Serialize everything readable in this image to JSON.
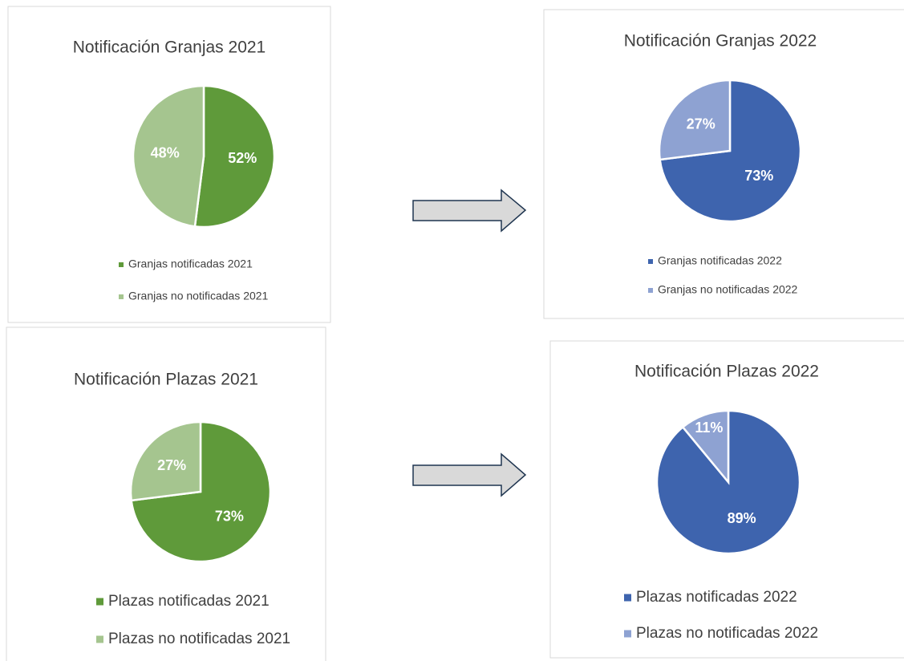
{
  "chart_data": [
    {
      "type": "pie",
      "title": "Notificación Granjas 2021",
      "categories": [
        "Granjas notificadas 2021",
        "Granjas no notificadas 2021"
      ],
      "values": [
        52,
        48
      ],
      "value_labels": [
        "52%",
        "48%"
      ],
      "colors": [
        "#5f9a3a",
        "#a5c58f"
      ]
    },
    {
      "type": "pie",
      "title": "Notificación Granjas 2022",
      "categories": [
        "Granjas notificadas 2022",
        "Granjas no notificadas 2022"
      ],
      "values": [
        73,
        27
      ],
      "value_labels": [
        "73%",
        "27%"
      ],
      "colors": [
        "#3e64ae",
        "#8ea2d2"
      ]
    },
    {
      "type": "pie",
      "title": "Notificación Plazas 2021",
      "categories": [
        "Plazas notificadas 2021",
        "Plazas no notificadas 2021"
      ],
      "values": [
        73,
        27
      ],
      "value_labels": [
        "73%",
        "27%"
      ],
      "colors": [
        "#5f9a3a",
        "#a5c58f"
      ]
    },
    {
      "type": "pie",
      "title": "Notificación Plazas 2022",
      "categories": [
        "Plazas notificadas 2022",
        "Plazas no notificadas 2022"
      ],
      "values": [
        89,
        11
      ],
      "value_labels": [
        "89%",
        "11%"
      ],
      "colors": [
        "#3e64ae",
        "#8ea2d2"
      ]
    }
  ]
}
